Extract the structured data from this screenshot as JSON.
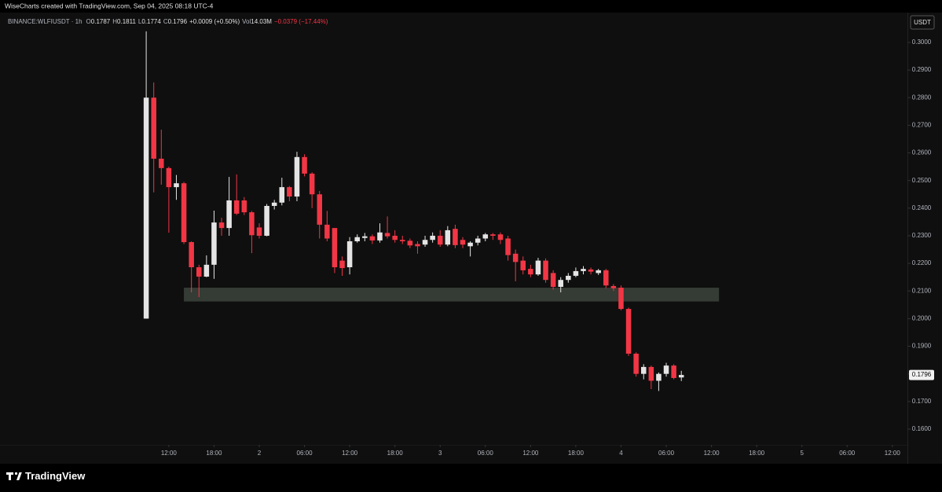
{
  "header": {
    "source": "WiseCharts created with TradingView.com, Sep 04, 2025 08:18 UTC-4",
    "symbol": "BINANCE:WLFIUSDT · 1h",
    "ohlc": [
      {
        "label": "O",
        "value": "0.1787"
      },
      {
        "label": "H",
        "value": "0.1811"
      },
      {
        "label": "L",
        "value": "0.1774"
      },
      {
        "label": "C",
        "value": "0.1796"
      }
    ],
    "change": "+0.0009 (+0.50%)",
    "volume_label": "Vol",
    "volume": "14.03M",
    "period_change": "−0.0379 (−17.44%)"
  },
  "chart_data": {
    "type": "candlestick",
    "currency": "USDT",
    "up_color": "#e4e4e4",
    "down_color": "#f23645",
    "open": [
      0.2,
      0.28,
      0.2579,
      0.2545,
      0.2476,
      0.249,
      0.2277,
      0.2186,
      0.2152,
      0.2195,
      0.2348,
      0.2328,
      0.2428,
      0.2428,
      0.2385,
      0.233,
      0.23,
      0.2408,
      0.242,
      0.2476,
      0.2442,
      0.2585,
      0.2525,
      0.245,
      0.234,
      0.2328,
      0.221,
      0.2186,
      0.228,
      0.2292,
      0.2298,
      0.2283,
      0.231,
      0.23,
      0.2285,
      0.2282,
      0.227,
      0.2268,
      0.2285,
      0.23,
      0.2268,
      0.2325,
      0.2285,
      0.2262,
      0.2275,
      0.229,
      0.2305,
      0.2305,
      0.229,
      0.2235,
      0.221,
      0.218,
      0.216,
      0.221,
      0.2165,
      0.2115,
      0.214,
      0.2155,
      0.2172,
      0.2178,
      0.2165,
      0.2175,
      0.2118,
      0.2112,
      0.2035,
      0.1873,
      0.18,
      0.1825,
      0.1775,
      0.18,
      0.183,
      0.1787
    ],
    "high": [
      0.304,
      0.2855,
      0.2684,
      0.255,
      0.252,
      0.2495,
      0.228,
      0.2195,
      0.2229,
      0.2391,
      0.2365,
      0.2513,
      0.2522,
      0.244,
      0.239,
      0.2345,
      0.2415,
      0.243,
      0.251,
      0.248,
      0.2604,
      0.2595,
      0.253,
      0.2462,
      0.239,
      0.232,
      0.2225,
      0.2295,
      0.2305,
      0.231,
      0.2305,
      0.2345,
      0.237,
      0.232,
      0.23,
      0.229,
      0.228,
      0.23,
      0.2312,
      0.232,
      0.2335,
      0.234,
      0.2295,
      0.228,
      0.23,
      0.231,
      0.231,
      0.2312,
      0.23,
      0.225,
      0.2225,
      0.2195,
      0.222,
      0.2218,
      0.2175,
      0.215,
      0.2165,
      0.2185,
      0.219,
      0.2185,
      0.218,
      0.218,
      0.2125,
      0.212,
      0.204,
      0.1878,
      0.1835,
      0.183,
      0.1805,
      0.184,
      0.1835,
      0.1811
    ],
    "low": [
      0.2,
      0.2457,
      0.2485,
      0.2311,
      0.243,
      0.227,
      0.2095,
      0.2078,
      0.215,
      0.2144,
      0.23,
      0.23,
      0.2375,
      0.2375,
      0.2237,
      0.229,
      0.2298,
      0.2395,
      0.241,
      0.2425,
      0.2425,
      0.2515,
      0.24,
      0.229,
      0.228,
      0.2165,
      0.2155,
      0.216,
      0.2275,
      0.228,
      0.227,
      0.2275,
      0.229,
      0.2275,
      0.227,
      0.2255,
      0.2235,
      0.226,
      0.2275,
      0.226,
      0.2262,
      0.2255,
      0.2255,
      0.2225,
      0.2265,
      0.228,
      0.2285,
      0.227,
      0.221,
      0.2135,
      0.216,
      0.215,
      0.2155,
      0.213,
      0.2105,
      0.2095,
      0.213,
      0.215,
      0.216,
      0.216,
      0.2158,
      0.211,
      0.21,
      0.203,
      0.1865,
      0.179,
      0.178,
      0.1745,
      0.1738,
      0.179,
      0.178,
      0.1774
    ],
    "close": [
      0.28,
      0.2579,
      0.2545,
      0.2476,
      0.249,
      0.2277,
      0.2186,
      0.2152,
      0.2195,
      0.2348,
      0.2328,
      0.2428,
      0.238,
      0.2385,
      0.2302,
      0.23,
      0.2408,
      0.242,
      0.2476,
      0.2442,
      0.2585,
      0.2525,
      0.245,
      0.234,
      0.229,
      0.2186,
      0.2183,
      0.228,
      0.2295,
      0.2298,
      0.2283,
      0.2312,
      0.2298,
      0.2285,
      0.228,
      0.2265,
      0.2262,
      0.2285,
      0.23,
      0.2268,
      0.232,
      0.2266,
      0.2268,
      0.2275,
      0.229,
      0.2305,
      0.23,
      0.2285,
      0.223,
      0.2205,
      0.2175,
      0.216,
      0.221,
      0.214,
      0.2115,
      0.214,
      0.2155,
      0.2172,
      0.218,
      0.217,
      0.2175,
      0.212,
      0.211,
      0.2035,
      0.1873,
      0.18,
      0.1825,
      0.1775,
      0.18,
      0.183,
      0.1785,
      0.1796
    ],
    "zone": {
      "x": [
        5,
        76
      ],
      "y": [
        0.2062,
        0.2112
      ],
      "color": "#353b35"
    },
    "xlim": [
      -19.4,
      101
    ],
    "ylim": [
      0.1543,
      0.3108
    ],
    "xticks": [
      {
        "value": 3,
        "label": "12:00"
      },
      {
        "value": 9,
        "label": "18:00"
      },
      {
        "value": 15,
        "label": "2"
      },
      {
        "value": 21,
        "label": "06:00"
      },
      {
        "value": 27,
        "label": "12:00"
      },
      {
        "value": 33,
        "label": "18:00"
      },
      {
        "value": 39,
        "label": "3"
      },
      {
        "value": 45,
        "label": "06:00"
      },
      {
        "value": 51,
        "label": "12:00"
      },
      {
        "value": 57,
        "label": "18:00"
      },
      {
        "value": 63,
        "label": "4"
      },
      {
        "value": 69,
        "label": "06:00"
      },
      {
        "value": 75,
        "label": "12:00"
      },
      {
        "value": 81,
        "label": "18:00"
      },
      {
        "value": 87,
        "label": "5"
      },
      {
        "value": 93,
        "label": "06:00"
      },
      {
        "value": 99,
        "label": "12:00"
      }
    ],
    "yticks": [
      {
        "value": 0.3,
        "label": "0.3000"
      },
      {
        "value": 0.29,
        "label": "0.2900"
      },
      {
        "value": 0.28,
        "label": "0.2800"
      },
      {
        "value": 0.27,
        "label": "0.2700"
      },
      {
        "value": 0.26,
        "label": "0.2600"
      },
      {
        "value": 0.25,
        "label": "0.2500"
      },
      {
        "value": 0.24,
        "label": "0.2400"
      },
      {
        "value": 0.23,
        "label": "0.2300"
      },
      {
        "value": 0.22,
        "label": "0.2200"
      },
      {
        "value": 0.21,
        "label": "0.2100"
      },
      {
        "value": 0.2,
        "label": "0.2000"
      },
      {
        "value": 0.19,
        "label": "0.1900"
      },
      {
        "value": 0.18,
        "label": "0.1800"
      },
      {
        "value": 0.17,
        "label": "0.1700"
      },
      {
        "value": 0.16,
        "label": "0.1600"
      }
    ],
    "grid": false
  },
  "footer": {
    "brand": "TradingView"
  }
}
